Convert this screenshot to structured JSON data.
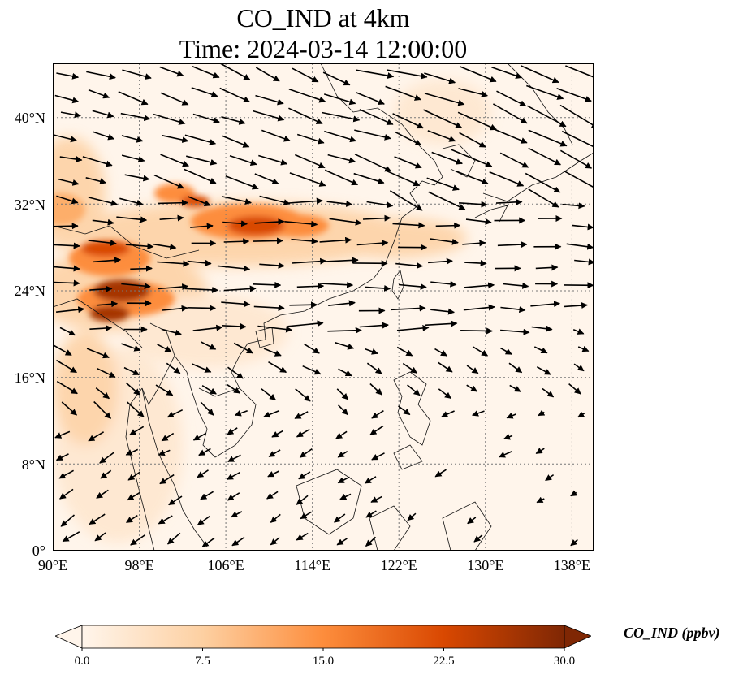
{
  "title_line1": "CO_IND at 4km",
  "title_line2": "Time: 2024-03-14 12:00:00",
  "lat_ticks": [
    "40°N",
    "32°N",
    "24°N",
    "16°N",
    "8°N",
    "0°"
  ],
  "lon_ticks": [
    "90°E",
    "98°E",
    "106°E",
    "114°E",
    "122°E",
    "130°E",
    "138°E"
  ],
  "colorbar": {
    "label": "CO_IND (ppbv)",
    "ticks": [
      "0.0",
      "7.5",
      "15.0",
      "22.5",
      "30.0"
    ],
    "colors": [
      "#fff5eb",
      "#fdd0a2",
      "#fd8d3c",
      "#d94801",
      "#7f2704"
    ],
    "extend": "both"
  },
  "map": {
    "extent": {
      "lon_min": 90,
      "lon_max": 140,
      "lat_min": 0,
      "lat_max": 45
    },
    "gridlines": "dotted",
    "coastlines": true,
    "borders": true,
    "vectors": "wind arrows"
  }
}
